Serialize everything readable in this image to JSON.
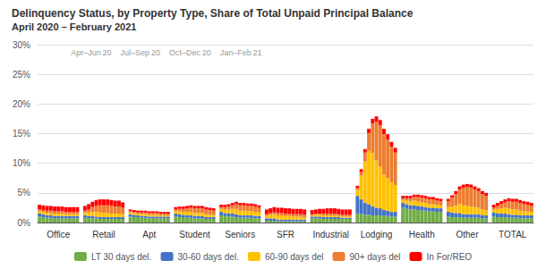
{
  "chart_data": {
    "type": "bar",
    "stacked": true,
    "title": "Delinquency Status, by Property Type, Share of Total Unpaid Principal Balance",
    "subtitle": "April 2020 – February 2021",
    "annotation": "Apr–Jun 20    Jul–Sep 20    Oct–Dec 20    Jan–Feb 21",
    "categories": [
      "Office",
      "Retail",
      "Apt",
      "Student",
      "Seniors",
      "SFR",
      "Industrial",
      "Lodging",
      "Health",
      "Other",
      "TOTAL"
    ],
    "series": [
      {
        "name": "LT 30 days del.",
        "color": "#70AD47",
        "values": [
          [
            0.01,
            0.009,
            0.008,
            0.008,
            0.007,
            0.007,
            0.007,
            0.007,
            0.007,
            0.007,
            0.007
          ],
          [
            0.008,
            0.007,
            0.007,
            0.007,
            0.006,
            0.006,
            0.006,
            0.006,
            0.006,
            0.006,
            0.006
          ],
          [
            0.01,
            0.009,
            0.009,
            0.008,
            0.008,
            0.007,
            0.007,
            0.007,
            0.007,
            0.007,
            0.007
          ],
          [
            0.01,
            0.009,
            0.009,
            0.008,
            0.008,
            0.007,
            0.007,
            0.007,
            0.006,
            0.006,
            0.006
          ],
          [
            0.012,
            0.011,
            0.01,
            0.01,
            0.009,
            0.008,
            0.008,
            0.008,
            0.008,
            0.007,
            0.007
          ],
          [
            0.003,
            0.003,
            0.003,
            0.002,
            0.002,
            0.002,
            0.002,
            0.002,
            0.002,
            0.002,
            0.002
          ],
          [
            0.007,
            0.007,
            0.007,
            0.006,
            0.006,
            0.006,
            0.006,
            0.006,
            0.006,
            0.006,
            0.006
          ],
          [
            0.015,
            0.014,
            0.013,
            0.013,
            0.012,
            0.012,
            0.012,
            0.011,
            0.011,
            0.01,
            0.01
          ],
          [
            0.025,
            0.023,
            0.022,
            0.022,
            0.021,
            0.02,
            0.02,
            0.019,
            0.019,
            0.018,
            0.018
          ],
          [
            0.01,
            0.009,
            0.009,
            0.009,
            0.008,
            0.008,
            0.008,
            0.008,
            0.008,
            0.007,
            0.007
          ],
          [
            0.01,
            0.009,
            0.009,
            0.009,
            0.008,
            0.008,
            0.008,
            0.007,
            0.007,
            0.007,
            0.007
          ]
        ]
      },
      {
        "name": "30-60 days del.",
        "color": "#4472C4",
        "values": [
          [
            0.005,
            0.005,
            0.004,
            0.004,
            0.004,
            0.004,
            0.004,
            0.004,
            0.004,
            0.004,
            0.004
          ],
          [
            0.004,
            0.004,
            0.004,
            0.003,
            0.003,
            0.003,
            0.003,
            0.003,
            0.003,
            0.003,
            0.003
          ],
          [
            0.004,
            0.004,
            0.003,
            0.003,
            0.003,
            0.003,
            0.003,
            0.003,
            0.003,
            0.003,
            0.003
          ],
          [
            0.005,
            0.005,
            0.004,
            0.004,
            0.004,
            0.004,
            0.004,
            0.004,
            0.003,
            0.003,
            0.003
          ],
          [
            0.006,
            0.005,
            0.005,
            0.005,
            0.005,
            0.004,
            0.004,
            0.004,
            0.004,
            0.004,
            0.004
          ],
          [
            0.004,
            0.004,
            0.004,
            0.003,
            0.003,
            0.003,
            0.003,
            0.003,
            0.003,
            0.003,
            0.003
          ],
          [
            0.003,
            0.003,
            0.003,
            0.003,
            0.003,
            0.003,
            0.003,
            0.003,
            0.002,
            0.002,
            0.002
          ],
          [
            0.03,
            0.025,
            0.02,
            0.018,
            0.015,
            0.013,
            0.012,
            0.01,
            0.009,
            0.008,
            0.008
          ],
          [
            0.008,
            0.008,
            0.007,
            0.007,
            0.007,
            0.007,
            0.006,
            0.006,
            0.006,
            0.006,
            0.006
          ],
          [
            0.008,
            0.008,
            0.007,
            0.007,
            0.006,
            0.006,
            0.006,
            0.006,
            0.006,
            0.005,
            0.005
          ],
          [
            0.007,
            0.007,
            0.006,
            0.006,
            0.006,
            0.005,
            0.005,
            0.005,
            0.005,
            0.005,
            0.005
          ]
        ]
      },
      {
        "name": "60-90 days del",
        "color": "#FFC000",
        "values": [
          [
            0.004,
            0.004,
            0.004,
            0.004,
            0.004,
            0.004,
            0.004,
            0.003,
            0.003,
            0.003,
            0.003
          ],
          [
            0.005,
            0.006,
            0.007,
            0.008,
            0.008,
            0.007,
            0.007,
            0.006,
            0.006,
            0.006,
            0.005
          ],
          [
            0.003,
            0.003,
            0.003,
            0.003,
            0.003,
            0.003,
            0.003,
            0.003,
            0.002,
            0.002,
            0.002
          ],
          [
            0.004,
            0.005,
            0.005,
            0.006,
            0.006,
            0.005,
            0.005,
            0.005,
            0.005,
            0.004,
            0.004
          ],
          [
            0.005,
            0.006,
            0.007,
            0.008,
            0.009,
            0.008,
            0.008,
            0.007,
            0.007,
            0.007,
            0.006
          ],
          [
            0.005,
            0.006,
            0.007,
            0.007,
            0.007,
            0.006,
            0.006,
            0.005,
            0.005,
            0.005,
            0.004
          ],
          [
            0.002,
            0.003,
            0.003,
            0.003,
            0.003,
            0.003,
            0.003,
            0.002,
            0.002,
            0.002,
            0.002
          ],
          [
            0.01,
            0.04,
            0.07,
            0.09,
            0.09,
            0.08,
            0.07,
            0.06,
            0.055,
            0.05,
            0.045
          ],
          [
            0.005,
            0.006,
            0.007,
            0.008,
            0.008,
            0.007,
            0.007,
            0.006,
            0.006,
            0.006,
            0.005
          ],
          [
            0.008,
            0.01,
            0.012,
            0.015,
            0.015,
            0.014,
            0.013,
            0.012,
            0.011,
            0.01,
            0.009
          ],
          [
            0.005,
            0.007,
            0.009,
            0.01,
            0.01,
            0.009,
            0.009,
            0.008,
            0.007,
            0.007,
            0.006
          ]
        ]
      },
      {
        "name": "90+ days del",
        "color": "#ED7D31",
        "values": [
          [
            0.003,
            0.003,
            0.004,
            0.004,
            0.004,
            0.004,
            0.004,
            0.004,
            0.004,
            0.004,
            0.004
          ],
          [
            0.003,
            0.005,
            0.008,
            0.01,
            0.012,
            0.013,
            0.013,
            0.013,
            0.012,
            0.012,
            0.011
          ],
          [
            0.002,
            0.002,
            0.002,
            0.003,
            0.003,
            0.003,
            0.003,
            0.003,
            0.003,
            0.003,
            0.003
          ],
          [
            0.003,
            0.004,
            0.005,
            0.006,
            0.007,
            0.008,
            0.008,
            0.008,
            0.008,
            0.008,
            0.007
          ],
          [
            0.003,
            0.004,
            0.005,
            0.006,
            0.008,
            0.009,
            0.009,
            0.009,
            0.009,
            0.009,
            0.008
          ],
          [
            0.002,
            0.003,
            0.003,
            0.004,
            0.004,
            0.004,
            0.004,
            0.004,
            0.004,
            0.004,
            0.004
          ],
          [
            0.002,
            0.002,
            0.002,
            0.003,
            0.003,
            0.003,
            0.003,
            0.003,
            0.003,
            0.003,
            0.003
          ],
          [
            0.003,
            0.006,
            0.015,
            0.03,
            0.05,
            0.065,
            0.07,
            0.068,
            0.065,
            0.06,
            0.055
          ],
          [
            0.003,
            0.004,
            0.005,
            0.006,
            0.007,
            0.008,
            0.008,
            0.008,
            0.008,
            0.007,
            0.007
          ],
          [
            0.01,
            0.015,
            0.02,
            0.025,
            0.03,
            0.032,
            0.032,
            0.03,
            0.028,
            0.026,
            0.024
          ],
          [
            0.003,
            0.005,
            0.007,
            0.009,
            0.012,
            0.013,
            0.013,
            0.013,
            0.012,
            0.011,
            0.01
          ]
        ]
      },
      {
        "name": "In For/REO",
        "color": "#FF0000",
        "values": [
          [
            0.008,
            0.008,
            0.008,
            0.008,
            0.008,
            0.008,
            0.008,
            0.008,
            0.008,
            0.008,
            0.008
          ],
          [
            0.008,
            0.009,
            0.009,
            0.01,
            0.01,
            0.01,
            0.01,
            0.01,
            0.01,
            0.01,
            0.009
          ],
          [
            0.003,
            0.003,
            0.003,
            0.003,
            0.003,
            0.003,
            0.003,
            0.003,
            0.003,
            0.003,
            0.003
          ],
          [
            0.004,
            0.004,
            0.004,
            0.004,
            0.004,
            0.004,
            0.004,
            0.004,
            0.004,
            0.004,
            0.004
          ],
          [
            0.004,
            0.004,
            0.004,
            0.004,
            0.004,
            0.004,
            0.004,
            0.004,
            0.004,
            0.004,
            0.004
          ],
          [
            0.008,
            0.008,
            0.009,
            0.009,
            0.009,
            0.009,
            0.009,
            0.009,
            0.009,
            0.009,
            0.009
          ],
          [
            0.007,
            0.007,
            0.008,
            0.008,
            0.009,
            0.009,
            0.009,
            0.009,
            0.009,
            0.009,
            0.009
          ],
          [
            0.004,
            0.005,
            0.006,
            0.007,
            0.008,
            0.009,
            0.009,
            0.009,
            0.009,
            0.008,
            0.008
          ],
          [
            0.004,
            0.004,
            0.004,
            0.004,
            0.004,
            0.004,
            0.004,
            0.004,
            0.004,
            0.004,
            0.004
          ],
          [
            0.004,
            0.004,
            0.005,
            0.005,
            0.005,
            0.005,
            0.005,
            0.005,
            0.005,
            0.005,
            0.005
          ],
          [
            0.005,
            0.005,
            0.005,
            0.005,
            0.005,
            0.005,
            0.005,
            0.005,
            0.005,
            0.005,
            0.005
          ]
        ]
      }
    ],
    "ylim": [
      0,
      0.3
    ],
    "yticks": [
      {
        "value": 0,
        "label": "0%"
      },
      {
        "value": 0.05,
        "label": "5%"
      },
      {
        "value": 0.1,
        "label": "10%"
      },
      {
        "value": 0.15,
        "label": "15%"
      },
      {
        "value": 0.2,
        "label": "20%"
      },
      {
        "value": 0.25,
        "label": "25%"
      },
      {
        "value": 0.3,
        "label": "30%"
      }
    ],
    "grid": true,
    "legend": "bottom"
  }
}
